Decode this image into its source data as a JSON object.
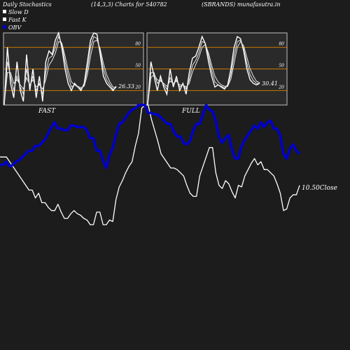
{
  "header": {
    "left": "Daily Stochastics",
    "middle": "(14,3,3) Charts for 540782",
    "right": "(SBRANDS) munafasutra.in"
  },
  "legend": [
    {
      "label": "Slow  D",
      "color": "#ffffff"
    },
    {
      "label": "Fast K",
      "color": "#ffffff"
    },
    {
      "label": "OBV",
      "color": "#0000cc"
    }
  ],
  "colors": {
    "background": "#1c1c1c",
    "panel_bg": "#2a2a2a",
    "level_lines": "#c87800",
    "price_line": "#ffffff",
    "obv_line": "#0000cc"
  },
  "chart_data": [
    {
      "type": "line",
      "panel": "FAST",
      "label": "FAST",
      "ylim": [
        0,
        100
      ],
      "levels": [
        20,
        50,
        80
      ],
      "tick_labels": [
        "80",
        "50",
        "20"
      ],
      "last_value_label": "26.33",
      "series": [
        {
          "values": [
            0,
            80,
            30,
            10,
            60,
            20,
            5,
            70,
            20,
            50,
            10,
            40,
            5,
            60,
            75,
            70,
            90,
            100,
            80,
            50,
            30,
            20,
            30,
            25,
            20,
            30,
            60,
            90,
            100,
            98,
            70,
            40,
            30,
            25,
            20,
            26
          ]
        },
        {
          "values": [
            0,
            60,
            40,
            20,
            40,
            25,
            15,
            50,
            25,
            40,
            20,
            30,
            15,
            45,
            65,
            68,
            80,
            95,
            85,
            60,
            40,
            25,
            28,
            25,
            22,
            28,
            50,
            80,
            95,
            92,
            75,
            50,
            35,
            28,
            22,
            24
          ]
        },
        {
          "values": [
            0,
            45,
            45,
            30,
            35,
            28,
            22,
            38,
            28,
            35,
            25,
            28,
            22,
            35,
            55,
            62,
            72,
            88,
            86,
            68,
            48,
            32,
            28,
            26,
            24,
            26,
            42,
            68,
            88,
            90,
            78,
            58,
            42,
            32,
            25,
            24
          ]
        }
      ]
    },
    {
      "type": "line",
      "panel": "FULL",
      "label": "FULL",
      "ylim": [
        0,
        100
      ],
      "levels": [
        20,
        50,
        80
      ],
      "tick_labels": [
        "80",
        "50",
        "20"
      ],
      "last_value_label": "30.41",
      "series": [
        {
          "values": [
            0,
            60,
            40,
            20,
            40,
            25,
            15,
            50,
            25,
            40,
            20,
            30,
            15,
            45,
            65,
            68,
            80,
            95,
            85,
            60,
            40,
            25,
            28,
            25,
            22,
            28,
            50,
            80,
            95,
            92,
            75,
            50,
            35,
            30,
            28,
            30
          ]
        },
        {
          "values": [
            0,
            45,
            45,
            30,
            35,
            28,
            22,
            38,
            28,
            35,
            25,
            28,
            22,
            35,
            55,
            62,
            72,
            88,
            86,
            68,
            48,
            32,
            28,
            26,
            24,
            26,
            42,
            68,
            88,
            90,
            78,
            58,
            42,
            34,
            30,
            30
          ]
        },
        {
          "values": [
            0,
            38,
            42,
            35,
            33,
            30,
            26,
            33,
            30,
            33,
            28,
            28,
            25,
            30,
            46,
            56,
            66,
            80,
            84,
            72,
            55,
            40,
            32,
            28,
            26,
            26,
            36,
            58,
            80,
            88,
            82,
            66,
            50,
            40,
            33,
            31
          ]
        }
      ]
    },
    {
      "type": "line",
      "panel": "main",
      "last_value_label": "10.50",
      "last_value_suffix": "Close",
      "series": [
        {
          "name": "Price",
          "values": [
            67,
            67,
            67,
            64,
            61,
            58,
            55,
            52,
            49,
            46,
            46,
            41,
            44,
            38,
            38,
            35,
            33,
            33,
            37,
            32,
            28,
            28,
            31,
            33,
            31,
            30,
            28,
            27,
            24,
            24,
            32,
            32,
            24,
            24,
            27,
            26,
            40,
            48,
            52,
            57,
            61,
            64,
            74,
            82,
            98,
            100,
            100,
            91,
            84,
            77,
            69,
            66,
            63,
            60,
            60,
            59,
            57,
            55,
            49,
            44,
            42,
            42,
            55,
            61,
            67,
            73,
            73,
            57,
            49,
            47,
            52,
            50,
            45,
            41,
            49,
            48,
            55,
            59,
            63,
            66,
            62,
            64,
            59,
            59,
            57,
            55,
            50,
            44,
            33,
            34,
            41,
            43,
            43,
            49
          ]
        },
        {
          "name": "OBV",
          "values": [
            62,
            62,
            64,
            61,
            62,
            64,
            65,
            67,
            69,
            71,
            71,
            74,
            74,
            76,
            78,
            82,
            86,
            89,
            85,
            85,
            84,
            84,
            87,
            87,
            86,
            86,
            86,
            84,
            79,
            79,
            71,
            71,
            65,
            60,
            68,
            73,
            81,
            88,
            89,
            92,
            95,
            97,
            98,
            100,
            100,
            100,
            95,
            95,
            94,
            94,
            92,
            90,
            88,
            88,
            83,
            80,
            80,
            76,
            75,
            77,
            84,
            88,
            88,
            94,
            100,
            97,
            96,
            90,
            80,
            76,
            79,
            81,
            72,
            66,
            66,
            74,
            78,
            81,
            84,
            87,
            85,
            89,
            86,
            89,
            90,
            85,
            85,
            81,
            69,
            66,
            72,
            75,
            71,
            69
          ]
        }
      ]
    }
  ]
}
